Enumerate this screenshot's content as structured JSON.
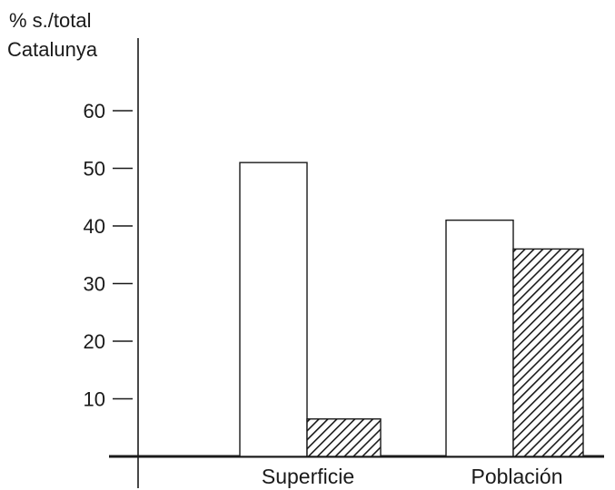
{
  "chart_data": {
    "type": "bar",
    "ylabel": [
      "% s./total",
      "Catalunya"
    ],
    "categories": [
      "Superficie",
      "Población"
    ],
    "series": [
      {
        "values": [
          51,
          41
        ],
        "fill": "white"
      },
      {
        "values": [
          6.5,
          36
        ],
        "fill": "hatched"
      }
    ],
    "yticks": [
      10,
      20,
      30,
      40,
      50,
      60
    ],
    "ylim": [
      0,
      70
    ],
    "grid": false
  },
  "colors": {
    "ink": "#1a1a1a",
    "background": "#ffffff"
  }
}
